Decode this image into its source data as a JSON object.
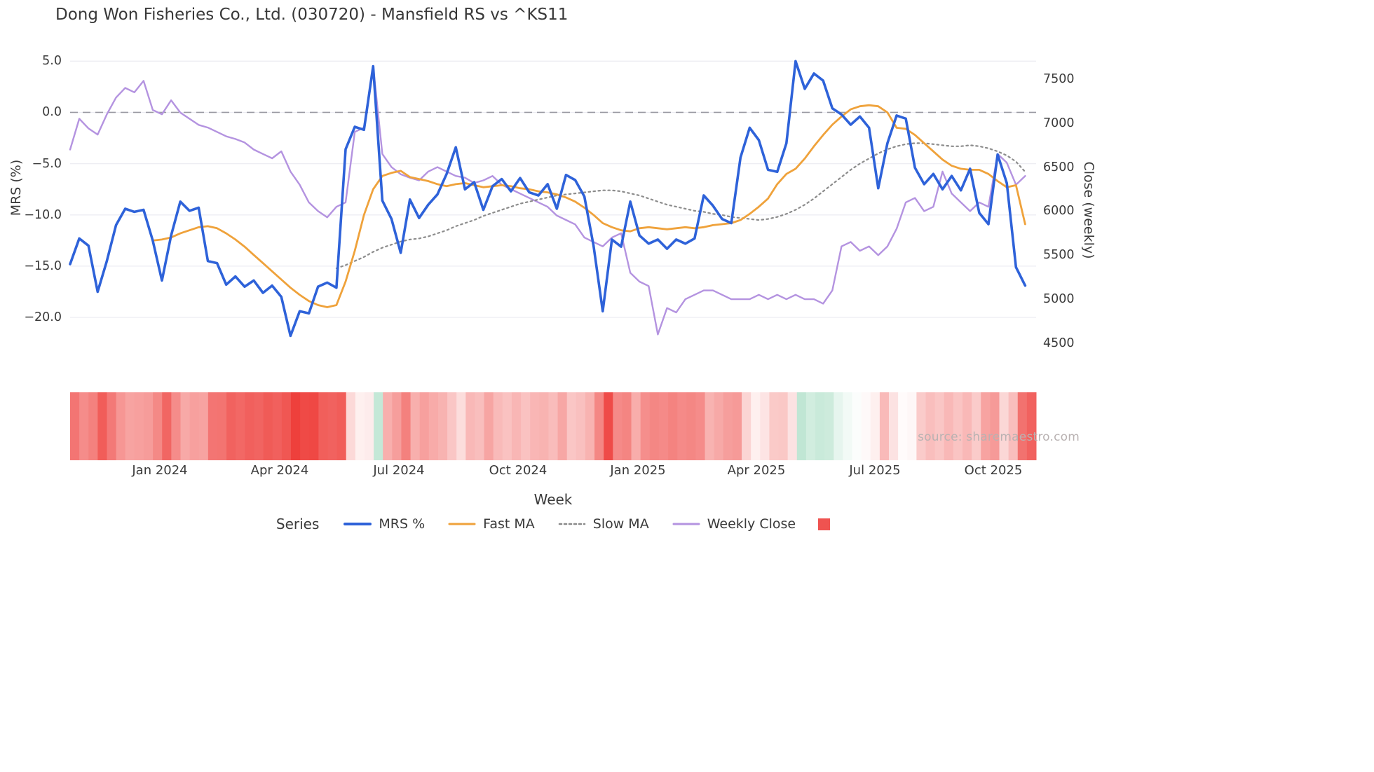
{
  "title": "Dong Won Fisheries Co., Ltd. (030720) - Mansfield RS vs ^KS11",
  "watermark": "source: sharemaestro.com",
  "legend": {
    "title": "Series",
    "items": [
      {
        "label": "MRS %",
        "swatch": "line",
        "color": "#2e62d9",
        "dash": "",
        "width": 4
      },
      {
        "label": "Fast MA",
        "swatch": "line",
        "color": "#efa23b",
        "dash": "",
        "width": 3
      },
      {
        "label": "Slow MA",
        "swatch": "line",
        "color": "#8a8a8a",
        "dash": "3 4",
        "width": 2.5
      },
      {
        "label": "Weekly Close",
        "swatch": "line",
        "color": "#b493e0",
        "dash": "",
        "width": 3
      },
      {
        "label": "",
        "swatch": "square",
        "color": "#ef5350"
      }
    ]
  },
  "chart_data": {
    "type": "line",
    "title": "Dong Won Fisheries Co., Ltd. (030720) - Mansfield RS vs ^KS11",
    "xlabel": "Week",
    "ylabel_left": "MRS (%)",
    "ylabel_right": "Close (weekly)",
    "n_weeks": 105,
    "x_unit": "weekly, Nov 2023 - Nov 2025",
    "grid": "horizontal",
    "zero_line_left": 0,
    "ylim_left": [
      -23,
      5.5
    ],
    "ylim_right": [
      4444,
      7762
    ],
    "left_ticks": [
      "5.0",
      "0.0",
      "−5.0",
      "−10.0",
      "−15.0",
      "−20.0"
    ],
    "left_tick_values": [
      5,
      0,
      -5,
      -10,
      -15,
      -20
    ],
    "right_ticks": [
      "7500",
      "7000",
      "6500",
      "6000",
      "5500",
      "5000",
      "4500"
    ],
    "right_tick_values": [
      7500,
      7000,
      6500,
      6000,
      5500,
      5000,
      4500
    ],
    "x_ticks": [
      "Jan 2024",
      "Apr 2024",
      "Jul 2024",
      "Oct 2024",
      "Jan 2025",
      "Apr 2025",
      "Jul 2025",
      "Oct 2025"
    ],
    "x_tick_weeks": [
      9.8,
      22.8,
      35.8,
      48.8,
      61.8,
      74.7,
      87.6,
      100.5
    ],
    "series": [
      {
        "name": "MRS %",
        "axis": "left",
        "color": "#2e62d9",
        "width": 3.6,
        "dash": "",
        "values": [
          -14.8,
          -12.3,
          -13.0,
          -17.5,
          -14.5,
          -11.0,
          -9.4,
          -9.7,
          -9.5,
          -12.5,
          -16.4,
          -12.0,
          -8.7,
          -9.6,
          -9.3,
          -14.5,
          -14.7,
          -16.8,
          -16.0,
          -17.0,
          -16.4,
          -17.6,
          -16.9,
          -18.0,
          -21.8,
          -19.4,
          -19.6,
          -17.0,
          -16.6,
          -17.1,
          -3.6,
          -1.4,
          -1.7,
          4.5,
          -8.6,
          -10.4,
          -13.7,
          -8.5,
          -10.3,
          -9.0,
          -8.0,
          -6.0,
          -3.4,
          -7.5,
          -6.8,
          -9.5,
          -7.2,
          -6.5,
          -7.7,
          -6.4,
          -7.8,
          -8.1,
          -7.0,
          -9.4,
          -6.1,
          -6.6,
          -8.2,
          -13.0,
          -19.4,
          -12.4,
          -13.1,
          -8.7,
          -12.0,
          -12.8,
          -12.4,
          -13.3,
          -12.4,
          -12.8,
          -12.3,
          -8.1,
          -9.1,
          -10.4,
          -10.8,
          -4.4,
          -1.5,
          -2.7,
          -5.6,
          -5.8,
          -3.0,
          5.0,
          2.3,
          3.8,
          3.1,
          0.4,
          -0.2,
          -1.2,
          -0.4,
          -1.5,
          -7.4,
          -3.0,
          -0.3,
          -0.6,
          -5.4,
          -7.0,
          -6.0,
          -7.5,
          -6.2,
          -7.6,
          -5.5,
          -9.8,
          -10.9,
          -4.1,
          -6.9,
          -15.1,
          -16.9
        ]
      },
      {
        "name": "Fast MA",
        "axis": "left",
        "color": "#efa23b",
        "width": 2.8,
        "dash": "",
        "values": [
          null,
          null,
          null,
          null,
          null,
          null,
          null,
          null,
          null,
          -12.5,
          -12.4,
          -12.2,
          -11.8,
          -11.5,
          -11.2,
          -11.1,
          -11.3,
          -11.8,
          -12.4,
          -13.1,
          -13.9,
          -14.7,
          -15.5,
          -16.3,
          -17.1,
          -17.8,
          -18.4,
          -18.8,
          -19.0,
          -18.8,
          -16.5,
          -13.5,
          -10.0,
          -7.5,
          -6.2,
          -5.9,
          -5.7,
          -6.3,
          -6.5,
          -6.7,
          -7.0,
          -7.2,
          -7.0,
          -6.9,
          -7.1,
          -7.3,
          -7.2,
          -7.1,
          -7.2,
          -7.4,
          -7.5,
          -7.7,
          -7.8,
          -8.0,
          -8.3,
          -8.7,
          -9.3,
          -10.0,
          -10.8,
          -11.2,
          -11.5,
          -11.6,
          -11.3,
          -11.2,
          -11.3,
          -11.4,
          -11.3,
          -11.2,
          -11.3,
          -11.2,
          -11.0,
          -10.9,
          -10.8,
          -10.5,
          -9.9,
          -9.2,
          -8.4,
          -7.0,
          -6.0,
          -5.5,
          -4.5,
          -3.3,
          -2.2,
          -1.2,
          -0.4,
          0.3,
          0.6,
          0.7,
          0.6,
          0.0,
          -1.5,
          -1.6,
          -2.2,
          -3.0,
          -3.8,
          -4.6,
          -5.2,
          -5.5,
          -5.6,
          -5.6,
          -6.0,
          -6.7,
          -7.3,
          -7.1,
          -10.9
        ]
      },
      {
        "name": "Slow MA",
        "axis": "left",
        "color": "#8c8c8c",
        "width": 2.2,
        "dash": "2.5 4.5",
        "values": [
          null,
          null,
          null,
          null,
          null,
          null,
          null,
          null,
          null,
          null,
          null,
          null,
          null,
          null,
          null,
          null,
          null,
          null,
          null,
          null,
          null,
          null,
          null,
          null,
          null,
          null,
          null,
          null,
          null,
          -15.2,
          -14.9,
          -14.5,
          -14.1,
          -13.6,
          -13.2,
          -12.9,
          -12.6,
          -12.4,
          -12.3,
          -12.1,
          -11.8,
          -11.5,
          -11.1,
          -10.8,
          -10.5,
          -10.1,
          -9.8,
          -9.5,
          -9.2,
          -8.9,
          -8.7,
          -8.5,
          -8.3,
          -8.1,
          -8.0,
          -7.9,
          -7.8,
          -7.7,
          -7.6,
          -7.6,
          -7.7,
          -7.9,
          -8.1,
          -8.4,
          -8.7,
          -9.0,
          -9.2,
          -9.4,
          -9.6,
          -9.7,
          -9.9,
          -10.0,
          -10.2,
          -10.3,
          -10.4,
          -10.5,
          -10.4,
          -10.2,
          -9.9,
          -9.5,
          -9.0,
          -8.4,
          -7.7,
          -7.0,
          -6.3,
          -5.6,
          -5.0,
          -4.5,
          -4.0,
          -3.6,
          -3.3,
          -3.1,
          -3.0,
          -3.0,
          -3.1,
          -3.2,
          -3.3,
          -3.3,
          -3.2,
          -3.3,
          -3.5,
          -3.8,
          -4.2,
          -4.8,
          -5.8
        ]
      },
      {
        "name": "Weekly Close",
        "axis": "right",
        "color": "#b493e0",
        "width": 2.4,
        "dash": "",
        "values": [
          6700,
          7050,
          6940,
          6870,
          7100,
          7290,
          7400,
          7350,
          7480,
          7150,
          7100,
          7260,
          7120,
          7050,
          6980,
          6950,
          6900,
          6850,
          6820,
          6780,
          6700,
          6650,
          6600,
          6680,
          6450,
          6300,
          6100,
          6000,
          5930,
          6050,
          6100,
          6900,
          6950,
          7650,
          6650,
          6500,
          6420,
          6380,
          6350,
          6450,
          6500,
          6450,
          6400,
          6380,
          6320,
          6350,
          6400,
          6300,
          6250,
          6200,
          6150,
          6100,
          6050,
          5950,
          5900,
          5850,
          5700,
          5650,
          5600,
          5700,
          5750,
          5300,
          5200,
          5150,
          4600,
          4900,
          4850,
          5000,
          5050,
          5100,
          5100,
          5050,
          5000,
          5000,
          5000,
          5050,
          5000,
          5050,
          5000,
          5050,
          5000,
          5000,
          4950,
          5100,
          5600,
          5650,
          5550,
          5600,
          5500,
          5600,
          5800,
          6100,
          6150,
          6000,
          6050,
          6450,
          6200,
          6100,
          6000,
          6100,
          6050,
          6650,
          6550,
          6300,
          6400
        ]
      }
    ],
    "heatmap": {
      "description": "weekly strength strip below chart; negative=red, positive=green",
      "neg_color": "#ee403c",
      "pos_color": "#2ead6f",
      "values": [
        -0.72,
        -0.6,
        -0.66,
        -0.85,
        -0.7,
        -0.55,
        -0.48,
        -0.5,
        -0.52,
        -0.62,
        -0.8,
        -0.6,
        -0.45,
        -0.5,
        -0.48,
        -0.72,
        -0.73,
        -0.82,
        -0.79,
        -0.83,
        -0.81,
        -0.86,
        -0.83,
        -0.88,
        -1.0,
        -0.95,
        -0.96,
        -0.84,
        -0.82,
        -0.85,
        -0.2,
        -0.08,
        -0.1,
        0.28,
        -0.42,
        -0.51,
        -0.66,
        -0.42,
        -0.5,
        -0.44,
        -0.4,
        -0.3,
        -0.18,
        -0.37,
        -0.34,
        -0.47,
        -0.36,
        -0.32,
        -0.38,
        -0.32,
        -0.38,
        -0.4,
        -0.35,
        -0.46,
        -0.3,
        -0.33,
        -0.4,
        -0.63,
        -0.94,
        -0.61,
        -0.64,
        -0.43,
        -0.59,
        -0.63,
        -0.61,
        -0.65,
        -0.61,
        -0.63,
        -0.6,
        -0.4,
        -0.45,
        -0.51,
        -0.53,
        -0.22,
        -0.08,
        -0.14,
        -0.28,
        -0.29,
        -0.15,
        0.3,
        0.22,
        0.26,
        0.24,
        0.12,
        0.06,
        0.02,
        -0.03,
        -0.08,
        -0.36,
        -0.15,
        -0.02,
        -0.04,
        -0.27,
        -0.34,
        -0.3,
        -0.37,
        -0.31,
        -0.37,
        -0.27,
        -0.48,
        -0.53,
        -0.21,
        -0.34,
        -0.74,
        -0.82
      ]
    }
  }
}
